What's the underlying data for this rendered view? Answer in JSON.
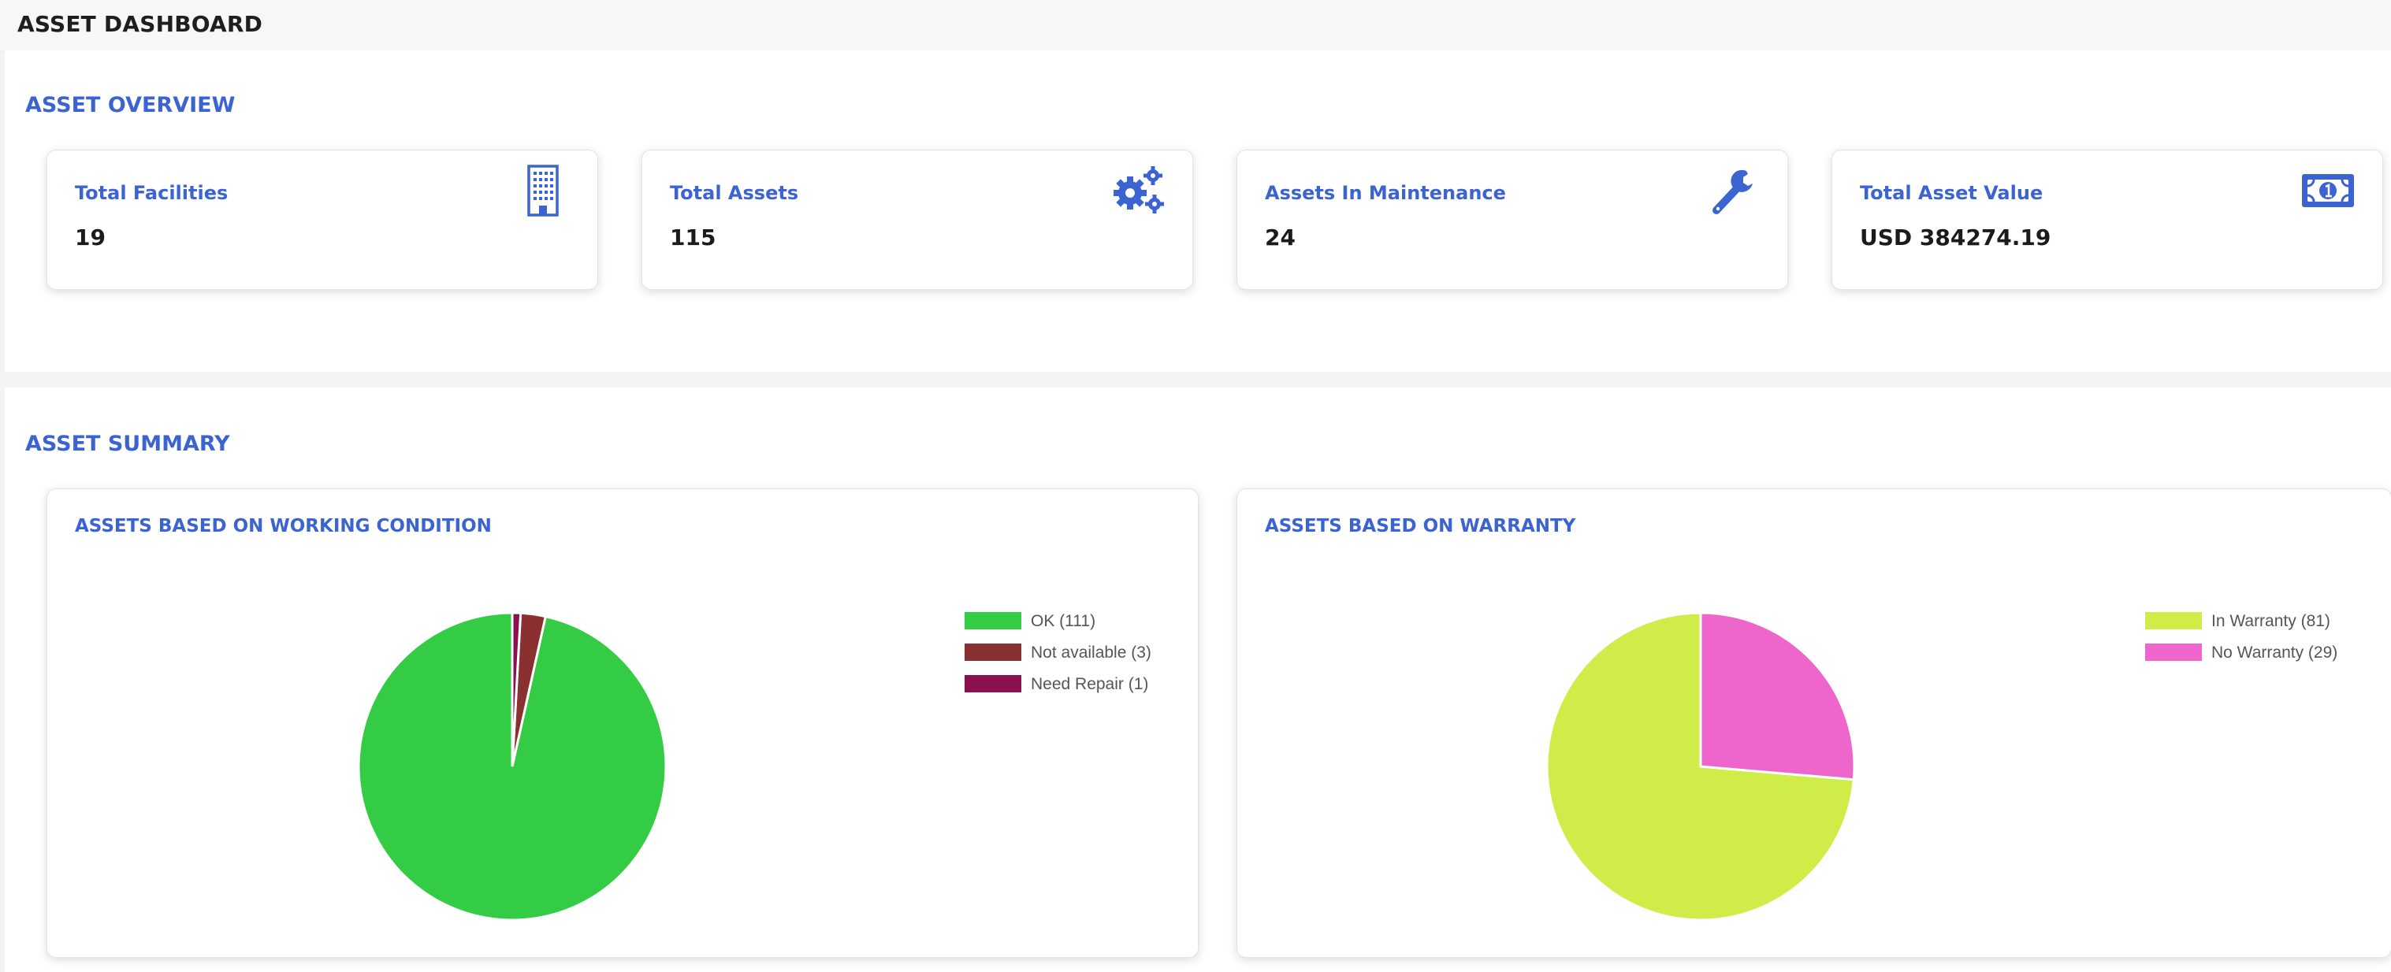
{
  "header": {
    "title": "ASSET DASHBOARD"
  },
  "overview": {
    "title": "ASSET OVERVIEW",
    "cards": [
      {
        "label": "Total Facilities",
        "value": "19",
        "icon": "building-icon"
      },
      {
        "label": "Total Assets",
        "value": "115",
        "icon": "gears-icon"
      },
      {
        "label": "Assets In Maintenance",
        "value": "24",
        "icon": "wrench-icon"
      },
      {
        "label": "Total Asset Value",
        "value": "USD 384274.19",
        "icon": "money-bill-icon"
      }
    ]
  },
  "summary": {
    "title": "ASSET SUMMARY",
    "working_title": "ASSETS BASED ON WORKING CONDITION",
    "warranty_title": "ASSETS BASED ON WARRANTY"
  },
  "colors": {
    "accent": "#3b63d1",
    "ok": "#33cc44",
    "not_available": "#8b3030",
    "need_repair": "#8b1050",
    "in_warranty": "#cfec48",
    "no_warranty": "#ee66cc"
  },
  "chart_data": [
    {
      "type": "pie",
      "title": "ASSETS BASED ON WORKING CONDITION",
      "categories": [
        "OK (111)",
        "Not available (3)",
        "Need Repair (1)"
      ],
      "values": [
        111,
        3,
        1
      ],
      "colors": [
        "#33cc44",
        "#8b3030",
        "#8b1050"
      ],
      "legend": "top-right"
    },
    {
      "type": "pie",
      "title": "ASSETS BASED ON WARRANTY",
      "categories": [
        "In Warranty (81)",
        "No Warranty (29)"
      ],
      "values": [
        81,
        29
      ],
      "colors": [
        "#cfec48",
        "#ee66cc"
      ],
      "legend": "top-right"
    }
  ]
}
